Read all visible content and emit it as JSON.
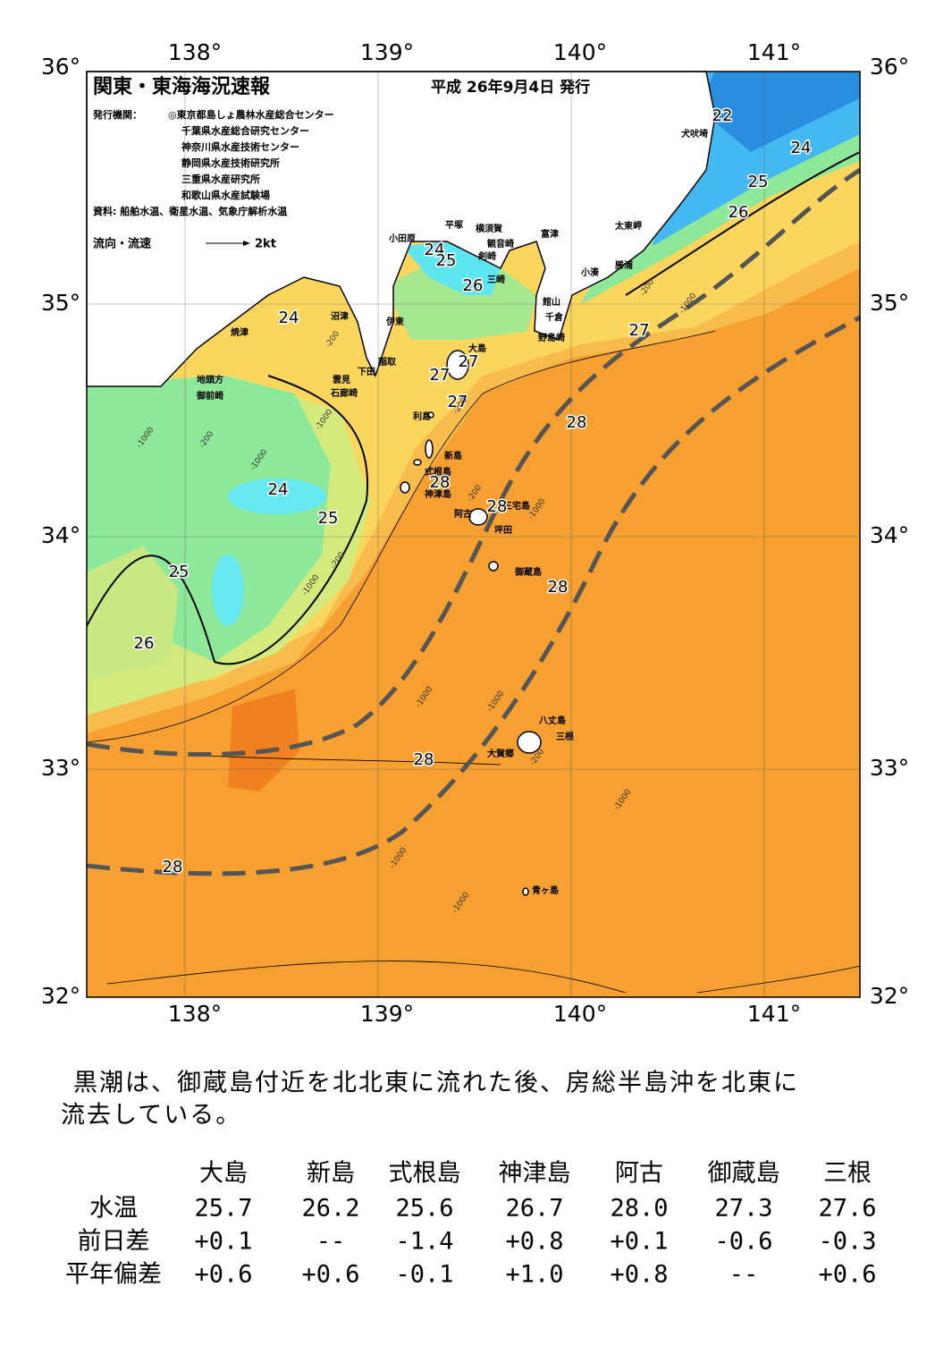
{
  "header": {
    "title": "関東・東海海況速報",
    "date": "平成 26年9月4日 発行",
    "publisher_label": "発行機関：",
    "publishers": [
      "◎東京都島しょ農林水産総合センター",
      "千葉県水産総合研究センター",
      "神奈川県水産技術センター",
      "静岡県水産技術研究所",
      "三重県水産研究所",
      "和歌山県水産試験場"
    ],
    "sources": "資料: 船舶水温、衛星水温、気象庁解析水温",
    "flow_label": "流向・流速",
    "flow_unit": "2kt"
  },
  "map": {
    "lon_labels": [
      "138°",
      "139°",
      "140°",
      "141°"
    ],
    "lat_labels": [
      "36°",
      "35°",
      "34°",
      "33°",
      "32°"
    ],
    "place_names": [
      "犬吠埼",
      "太東岬",
      "勝浦",
      "小湊",
      "館山",
      "千倉",
      "野島崎",
      "富津",
      "観音崎",
      "横須賀",
      "剣崎",
      "三崎",
      "平塚",
      "小田原",
      "伊東",
      "稲取",
      "下田",
      "雲見",
      "石廊崎",
      "沼津",
      "焼津",
      "地頭方",
      "御前崎",
      "大島",
      "利島",
      "新島",
      "式根島",
      "神津島",
      "阿古",
      "三宅島",
      "坪田",
      "御蔵島",
      "八丈島",
      "三根",
      "大賀郷",
      "青ヶ島"
    ],
    "contour_labels": [
      "22",
      "24",
      "25",
      "26",
      "27",
      "24",
      "25",
      "26",
      "27",
      "27",
      "27",
      "28",
      "28",
      "28",
      "28",
      "24",
      "24",
      "25",
      "25",
      "26",
      "28",
      "28"
    ],
    "depth_labels": [
      "-200",
      "-1000",
      "-200",
      "-1000",
      "-1000",
      "-200",
      "-200",
      "-1000",
      "-200",
      "-1000",
      "-1000",
      "-1000",
      "-200",
      "-1000",
      "-1000",
      "-1000",
      "-200",
      "-1000"
    ]
  },
  "summary": {
    "lines": [
      "黒潮は、御蔵島付近を北北東に流れた後、房総半島沖を北東に",
      "流去している。"
    ]
  },
  "table": {
    "columns": [
      "大島",
      "新島",
      "式根島",
      "神津島",
      "阿古",
      "御蔵島",
      "三根"
    ],
    "rows": [
      [
        "水温",
        "25.7",
        "26.2",
        "25.6",
        "26.7",
        "28.0",
        "27.3",
        "27.6"
      ],
      [
        "前日差",
        "+0.1",
        "--",
        "-1.4",
        "+0.8",
        "+0.1",
        "-0.6",
        "-0.3"
      ],
      [
        "平年偏差",
        "+0.6",
        "+0.6",
        "-0.1",
        "+1.0",
        "+0.8",
        "--",
        "+0.6"
      ]
    ]
  }
}
